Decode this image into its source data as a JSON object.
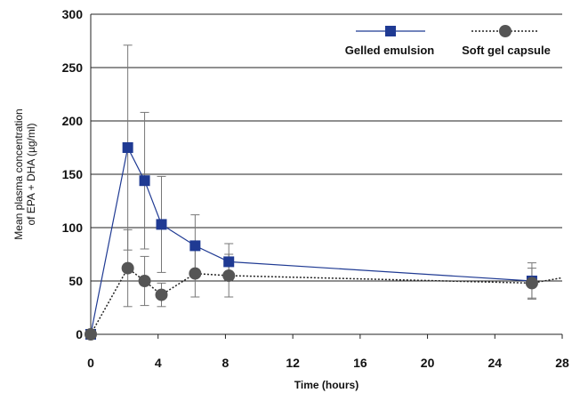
{
  "chart_data": {
    "type": "line",
    "title": "",
    "xlabel": "Time (hours)",
    "ylabel_lines": [
      "Mean plasma concentration",
      "of EPA + DHA (µg/ml)"
    ],
    "xlim": [
      0,
      28
    ],
    "ylim": [
      0,
      300
    ],
    "xticks": [
      0,
      4,
      8,
      12,
      16,
      20,
      24,
      28
    ],
    "yticks": [
      0,
      50,
      100,
      150,
      200,
      250,
      300
    ],
    "grid": "horizontal",
    "legend_position": "top-right",
    "series": [
      {
        "name": "Gelled emulsion",
        "marker": "square",
        "line_style": "solid",
        "color": "#1f3a93",
        "x": [
          0,
          2.2,
          3.2,
          4.2,
          6.2,
          8.2,
          26.2
        ],
        "y": [
          0,
          175,
          144,
          103,
          83,
          68,
          50
        ],
        "error": [
          0,
          96,
          64,
          45,
          29,
          17,
          17
        ]
      },
      {
        "name": "Soft gel capsule",
        "marker": "circle",
        "line_style": "dotted",
        "color": "#555555",
        "x": [
          0,
          2.2,
          3.2,
          4.2,
          6.2,
          8.2,
          26.2,
          28
        ],
        "y": [
          0,
          62,
          50,
          37,
          57,
          55,
          48,
          53
        ],
        "error": [
          0,
          36,
          23,
          11,
          22,
          20,
          14,
          0
        ]
      }
    ]
  }
}
